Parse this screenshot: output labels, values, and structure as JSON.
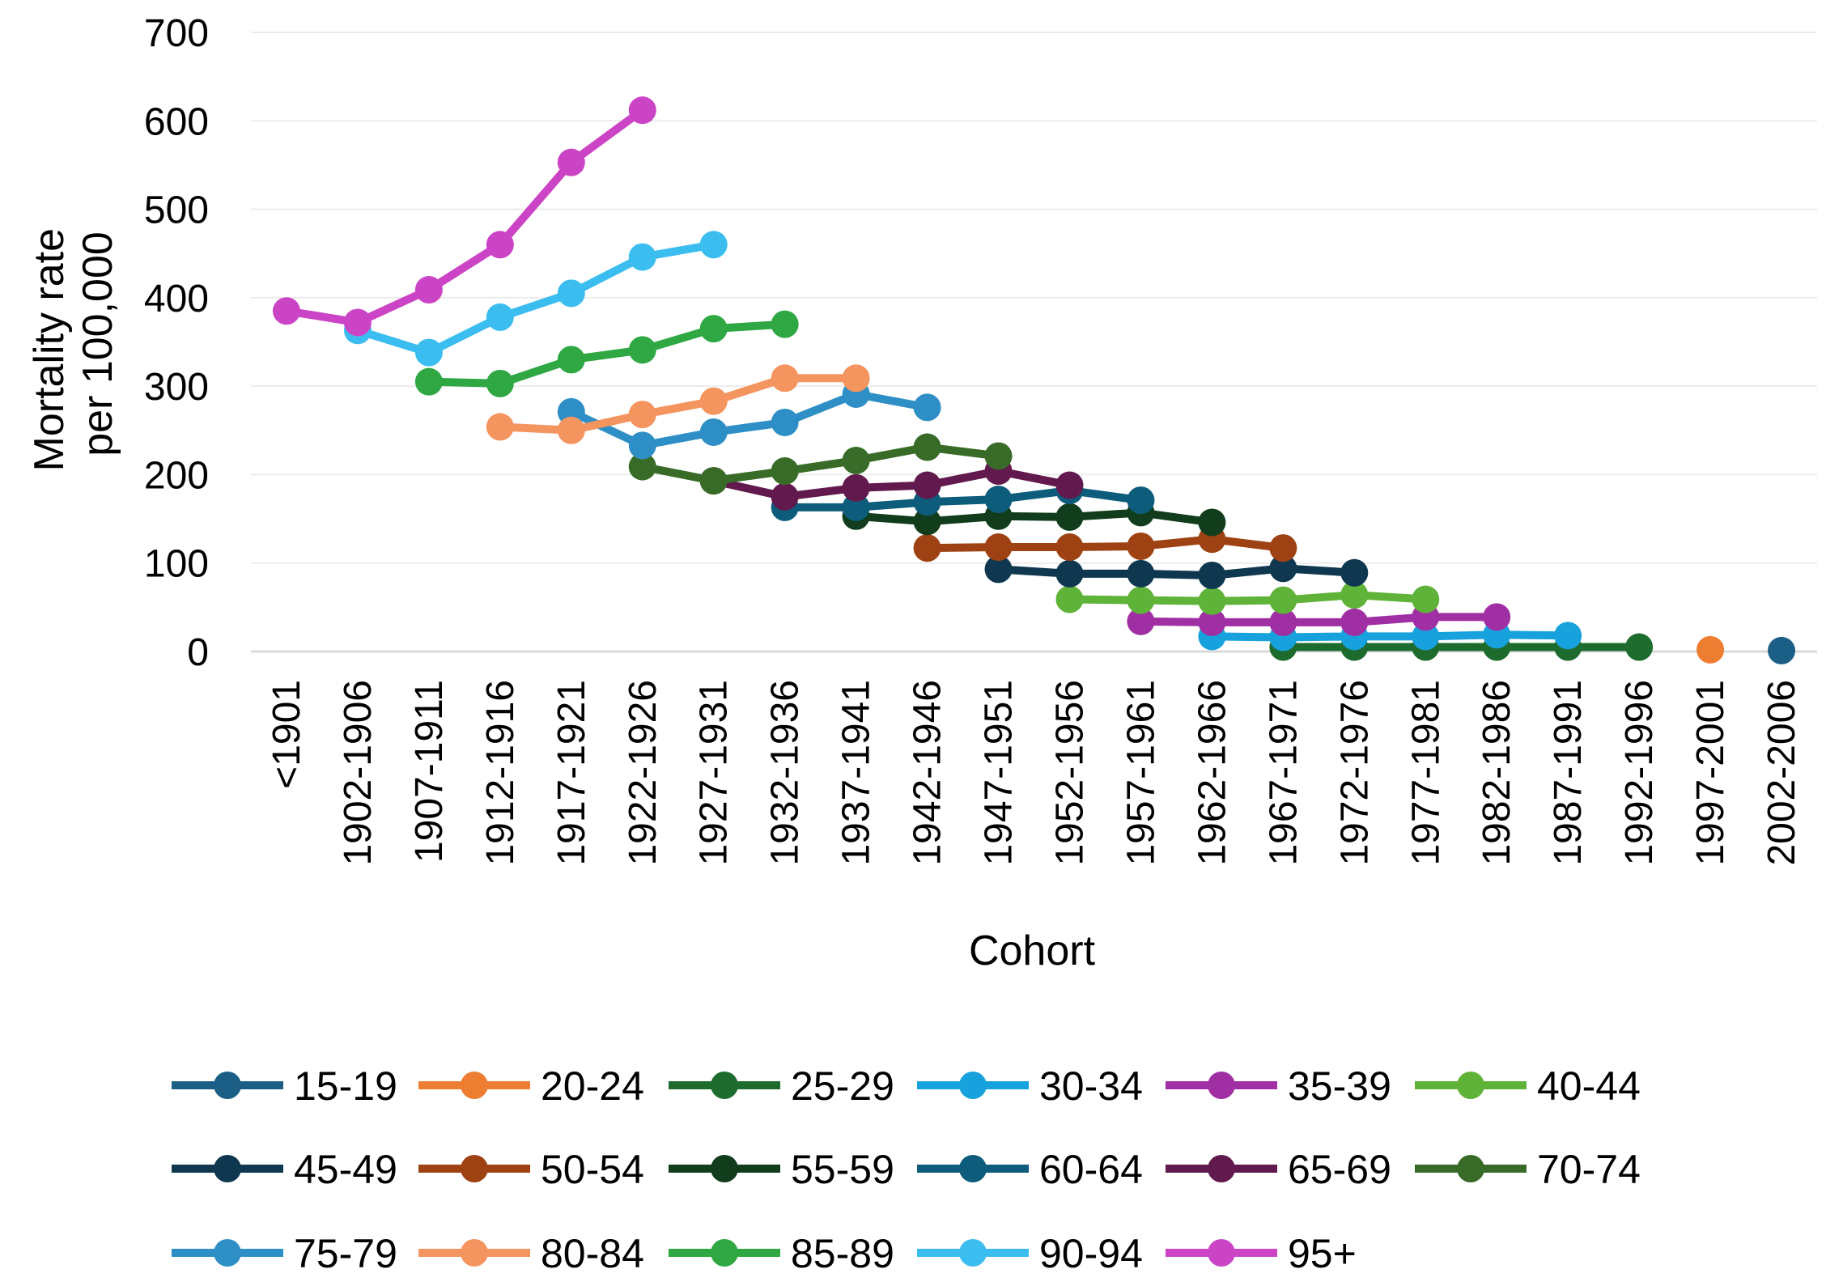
{
  "chart_data": {
    "type": "line",
    "xlabel": "Cohort",
    "ylabel_lines": [
      "Mortality rate",
      "per 100,000"
    ],
    "ylim": [
      0,
      700
    ],
    "yticks": [
      0,
      100,
      200,
      300,
      400,
      500,
      600,
      700
    ],
    "grid": true,
    "legend_position": "bottom",
    "categories": [
      "<1901",
      "1902-1906",
      "1907-1911",
      "1912-1916",
      "1917-1921",
      "1922-1926",
      "1927-1931",
      "1932-1936",
      "1937-1941",
      "1942-1946",
      "1947-1951",
      "1952-1956",
      "1957-1961",
      "1962-1966",
      "1967-1971",
      "1972-1976",
      "1977-1981",
      "1982-1986",
      "1987-1991",
      "1992-1996",
      "1997-2001",
      "2002-2006"
    ],
    "series": [
      {
        "name": "15-19",
        "color": "#1b5f86",
        "values": [
          null,
          null,
          null,
          null,
          null,
          null,
          null,
          null,
          null,
          null,
          null,
          null,
          null,
          null,
          null,
          null,
          null,
          null,
          null,
          null,
          null,
          1
        ]
      },
      {
        "name": "20-24",
        "color": "#ed7d31",
        "values": [
          null,
          null,
          null,
          null,
          null,
          null,
          null,
          null,
          null,
          null,
          null,
          null,
          null,
          null,
          null,
          null,
          null,
          null,
          null,
          null,
          2,
          null
        ]
      },
      {
        "name": "25-29",
        "color": "#1e6b2e",
        "values": [
          null,
          null,
          null,
          null,
          null,
          null,
          null,
          null,
          null,
          null,
          null,
          null,
          null,
          null,
          5,
          5,
          5,
          5,
          5,
          5,
          null,
          null
        ]
      },
      {
        "name": "30-34",
        "color": "#17a2dd",
        "values": [
          null,
          null,
          null,
          null,
          null,
          null,
          null,
          null,
          null,
          null,
          null,
          null,
          null,
          17,
          16,
          17,
          17,
          19,
          18,
          null,
          null,
          null
        ]
      },
      {
        "name": "35-39",
        "color": "#a02fa4",
        "values": [
          null,
          null,
          null,
          null,
          null,
          null,
          null,
          null,
          null,
          null,
          null,
          null,
          34,
          33,
          33,
          33,
          39,
          39,
          null,
          null,
          null,
          null
        ]
      },
      {
        "name": "40-44",
        "color": "#5fb339",
        "values": [
          null,
          null,
          null,
          null,
          null,
          null,
          null,
          null,
          null,
          null,
          null,
          59,
          58,
          57,
          58,
          64,
          59,
          null,
          null,
          null,
          null,
          null
        ]
      },
      {
        "name": "45-49",
        "color": "#0f3850",
        "values": [
          null,
          null,
          null,
          null,
          null,
          null,
          null,
          null,
          null,
          null,
          93,
          88,
          88,
          86,
          94,
          89,
          null,
          null,
          null,
          null,
          null,
          null
        ]
      },
      {
        "name": "50-54",
        "color": "#9e4213",
        "values": [
          null,
          null,
          null,
          null,
          null,
          null,
          null,
          null,
          null,
          117,
          118,
          118,
          119,
          127,
          117,
          null,
          null,
          null,
          null,
          null,
          null,
          null
        ]
      },
      {
        "name": "55-59",
        "color": "#123d1c",
        "values": [
          null,
          null,
          null,
          null,
          null,
          null,
          null,
          null,
          153,
          147,
          153,
          152,
          157,
          146,
          null,
          null,
          null,
          null,
          null,
          null,
          null,
          null
        ]
      },
      {
        "name": "60-64",
        "color": "#0d5c7b",
        "values": [
          null,
          null,
          null,
          null,
          null,
          null,
          null,
          163,
          163,
          169,
          172,
          182,
          171,
          null,
          null,
          null,
          null,
          null,
          null,
          null,
          null,
          null
        ]
      },
      {
        "name": "65-69",
        "color": "#621a4e",
        "values": [
          null,
          null,
          null,
          null,
          null,
          null,
          193,
          175,
          185,
          188,
          204,
          188,
          null,
          null,
          null,
          null,
          null,
          null,
          null,
          null,
          null,
          null
        ]
      },
      {
        "name": "70-74",
        "color": "#386b27",
        "values": [
          null,
          null,
          null,
          null,
          null,
          209,
          193,
          204,
          216,
          231,
          221,
          null,
          null,
          null,
          null,
          null,
          null,
          null,
          null,
          null,
          null,
          null
        ]
      },
      {
        "name": "75-79",
        "color": "#2e8fc6",
        "values": [
          null,
          null,
          null,
          null,
          271,
          233,
          248,
          259,
          291,
          276,
          null,
          null,
          null,
          null,
          null,
          null,
          null,
          null,
          null,
          null,
          null,
          null
        ]
      },
      {
        "name": "80-84",
        "color": "#f4945f",
        "values": [
          null,
          null,
          null,
          254,
          250,
          268,
          283,
          309,
          309,
          null,
          null,
          null,
          null,
          null,
          null,
          null,
          null,
          null,
          null,
          null,
          null,
          null
        ]
      },
      {
        "name": "85-89",
        "color": "#2fa743",
        "values": [
          null,
          null,
          305,
          303,
          330,
          341,
          365,
          370,
          null,
          null,
          null,
          null,
          null,
          null,
          null,
          null,
          null,
          null,
          null,
          null,
          null,
          null
        ]
      },
      {
        "name": "90-94",
        "color": "#3cbdf0",
        "values": [
          null,
          363,
          338,
          378,
          405,
          446,
          460,
          null,
          null,
          null,
          null,
          null,
          null,
          null,
          null,
          null,
          null,
          null,
          null,
          null,
          null,
          null
        ]
      },
      {
        "name": "95+",
        "color": "#cc44c6",
        "values": [
          385,
          372,
          409,
          460,
          553,
          612,
          null,
          null,
          null,
          null,
          null,
          null,
          null,
          null,
          null,
          null,
          null,
          null,
          null,
          null,
          null,
          null
        ]
      }
    ]
  }
}
